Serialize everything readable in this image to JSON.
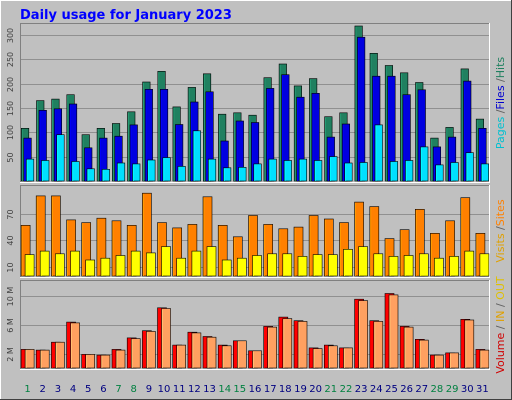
{
  "chart_data": {
    "type": "bar",
    "title": "Daily usage for January 2023",
    "categories": [
      "1",
      "2",
      "3",
      "4",
      "5",
      "6",
      "7",
      "8",
      "9",
      "10",
      "11",
      "12",
      "13",
      "14",
      "15",
      "16",
      "17",
      "18",
      "19",
      "20",
      "21",
      "22",
      "23",
      "24",
      "25",
      "26",
      "27",
      "28",
      "29",
      "30",
      "31"
    ],
    "weekend_days": [
      "1",
      "7",
      "8",
      "14",
      "15",
      "21",
      "22",
      "28",
      "29"
    ],
    "panels": [
      {
        "name": "hits",
        "ylim": [
          0,
          320
        ],
        "ticks": [
          {
            "value": 50,
            "label": "50"
          },
          {
            "value": 100,
            "label": "100"
          },
          {
            "value": 150,
            "label": "150"
          },
          {
            "value": 200,
            "label": "200"
          },
          {
            "value": 250,
            "label": "250"
          },
          {
            "value": 300,
            "label": "300"
          }
        ],
        "series": [
          {
            "name": "Hits",
            "color": "#208060",
            "values": [
              108,
              165,
              168,
              177,
              95,
              108,
              118,
              142,
              203,
              225,
              152,
              192,
              220,
              137,
              140,
              135,
              212,
              240,
              195,
              210,
              132,
              140,
              318,
              262,
              237,
              222,
              202,
              88,
              110,
              230,
              127
            ]
          },
          {
            "name": "Files",
            "color": "#0000e0",
            "values": [
              88,
              145,
              148,
              158,
              68,
              88,
              92,
              115,
              188,
              188,
              116,
              162,
              183,
              82,
              123,
              120,
              190,
              218,
              172,
              180,
              90,
              117,
              295,
              215,
              215,
              177,
              187,
              70,
              90,
              205,
              108
            ]
          },
          {
            "name": "Pages",
            "color": "#00e0ff",
            "values": [
              45,
              42,
              95,
              40,
              25,
              24,
              37,
              35,
              43,
              48,
              30,
              103,
              45,
              27,
              28,
              35,
              45,
              42,
              45,
              42,
              50,
              37,
              38,
              115,
              40,
              42,
              70,
              33,
              38,
              58,
              35
            ]
          }
        ]
      },
      {
        "name": "visits",
        "ylim": [
          0,
          100
        ],
        "ticks": [
          {
            "value": 10,
            "label": "10"
          },
          {
            "value": 40,
            "label": "40"
          },
          {
            "value": 70,
            "label": "70"
          }
        ],
        "series": [
          {
            "name": "Visits",
            "color": "#ff8000",
            "values": [
              57,
              90,
              90,
              63,
              60,
              65,
              62,
              57,
              93,
              60,
              54,
              58,
              89,
              57,
              44,
              68,
              58,
              53,
              55,
              68,
              64,
              60,
              83,
              78,
              42,
              52,
              75,
              48,
              62,
              88,
              48
            ]
          },
          {
            "name": "Sites",
            "color": "#ffff00",
            "values": [
              24,
              28,
              25,
              28,
              18,
              20,
              23,
              28,
              26,
              33,
              20,
              28,
              33,
              18,
              20,
              23,
              25,
              25,
              22,
              24,
              24,
              30,
              33,
              25,
              22,
              23,
              25,
              20,
              22,
              28,
              25
            ]
          }
        ]
      },
      {
        "name": "volume",
        "ylim": [
          0,
          12
        ],
        "ticks": [
          {
            "value": 2,
            "label": "2 M"
          },
          {
            "value": 6,
            "label": "6 M"
          },
          {
            "value": 10,
            "label": "10 M"
          }
        ],
        "series": [
          {
            "name": "Volume",
            "color": "#ff0000",
            "values": [
              2.6,
              2.5,
              3.6,
              6.4,
              1.9,
              1.8,
              2.6,
              4.2,
              5.2,
              8.4,
              3.2,
              5.0,
              4.4,
              3.2,
              3.8,
              2.4,
              5.8,
              7.1,
              6.6,
              2.8,
              3.2,
              2.8,
              9.6,
              6.6,
              10.4,
              5.8,
              4.0,
              1.8,
              2.1,
              6.8,
              2.6
            ]
          },
          {
            "name": "IN",
            "color": "#ffa060",
            "values": [
              2.6,
              2.5,
              3.6,
              6.3,
              1.9,
              1.8,
              2.5,
              4.1,
              5.1,
              8.3,
              3.2,
              4.9,
              4.3,
              3.1,
              3.8,
              2.4,
              5.7,
              6.9,
              6.5,
              2.7,
              3.1,
              2.8,
              9.4,
              6.5,
              10.2,
              5.7,
              3.9,
              1.8,
              2.1,
              6.7,
              2.5
            ]
          }
        ]
      }
    ]
  },
  "side_labels": [
    {
      "text": "Pages",
      "color": "#00c0d0"
    },
    {
      "text": " /",
      "color": "#606060"
    },
    {
      "text": "Files",
      "color": "#0000d0"
    },
    {
      "text": " /",
      "color": "#606060"
    },
    {
      "text": "Hits",
      "color": "#208060"
    },
    {
      "text": "Visits",
      "color": "#e0a000"
    },
    {
      "text": " /",
      "color": "#606060"
    },
    {
      "text": "Sites",
      "color": "#ff8000"
    },
    {
      "text": "Volume",
      "color": "#d00000"
    },
    {
      "text": " / ",
      "color": "#606060"
    },
    {
      "text": "IN",
      "color": "#e0a000"
    },
    {
      "text": " / ",
      "color": "#606060"
    },
    {
      "text": "OUT",
      "color": "#e0c000"
    }
  ],
  "colors": {
    "background": "#c0c0c0",
    "title": "#0000ff",
    "weekday_label": "#000080",
    "weekend_label": "#008040"
  }
}
